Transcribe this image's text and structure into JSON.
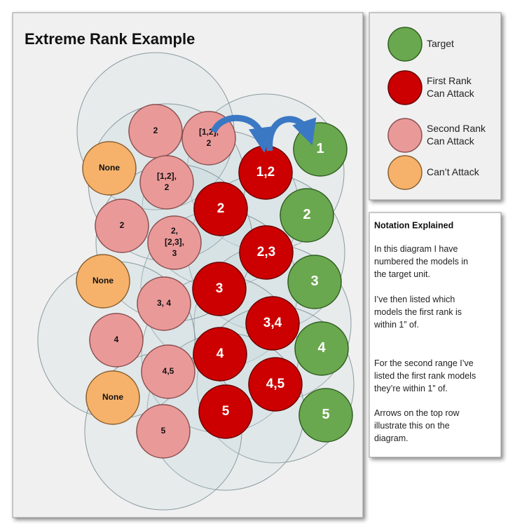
{
  "title": "Extreme Rank Example",
  "legend": [
    {
      "label": [
        "Target"
      ]
    },
    {
      "label": [
        "First Rank",
        "Can Attack"
      ]
    },
    {
      "label": [
        "Second Rank",
        "Can Attack"
      ]
    },
    {
      "label": [
        "Can’t Attack"
      ]
    }
  ],
  "nodes": {
    "target": [
      [
        "1"
      ],
      [
        "2"
      ],
      [
        "3"
      ],
      [
        "4"
      ],
      [
        "5"
      ]
    ],
    "first_rank": [
      [
        "1,2"
      ],
      [
        "2"
      ],
      [
        "2,3"
      ],
      [
        "3"
      ],
      [
        "3,4"
      ],
      [
        "4"
      ],
      [
        "4,5"
      ],
      [
        "5"
      ]
    ],
    "second_rank": [
      [
        "2"
      ],
      [
        "[1,2],",
        "2"
      ],
      [
        "[1,2],",
        "2"
      ],
      [
        "2"
      ],
      [
        "2,",
        "[2,3],",
        "3"
      ],
      [
        "3, 4"
      ],
      [
        "4"
      ],
      [
        "4,5"
      ],
      [
        "5"
      ]
    ],
    "cant_attack": [
      [
        "None"
      ],
      [
        "None"
      ],
      [
        "None"
      ]
    ]
  },
  "notes": {
    "heading": "Notation Explained",
    "paragraphs": [
      [
        "In this diagram I have",
        "numbered the models in",
        "the target unit."
      ],
      [
        "I’ve then listed which",
        "models the first rank is",
        "within 1” of."
      ],
      [
        "For the second range I’ve",
        "listed the first rank models",
        "they’re within 1” of."
      ],
      [
        "Arrows on the top row",
        "illustrate this on the",
        "diagram."
      ]
    ]
  }
}
